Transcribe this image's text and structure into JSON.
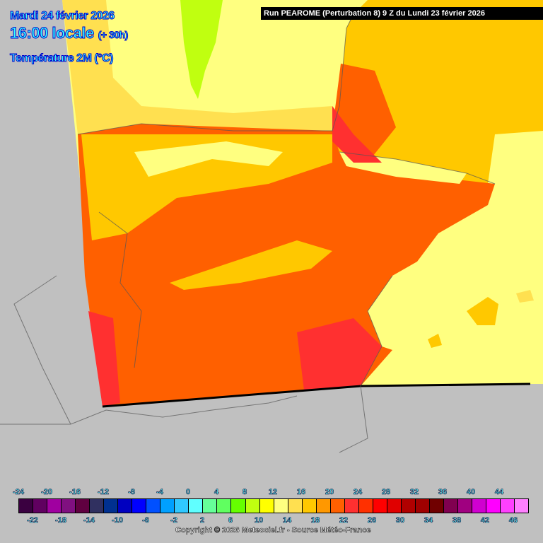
{
  "header": {
    "date": "Mardi 24 février 2026",
    "time": "16:00 locale",
    "lead": "(+ 30h)",
    "parameter": "Température 2M (°C)",
    "run": "Run PEAROME (Perturbation 8) 9 Z du Lundi 23 février 2026"
  },
  "legend": {
    "colors": [
      "#3a0040",
      "#600060",
      "#a000a0",
      "#801080",
      "#600040",
      "#303060",
      "#003090",
      "#0000c0",
      "#0000ff",
      "#0050ff",
      "#00a0ff",
      "#30c8ff",
      "#60ffff",
      "#66ff99",
      "#60ff60",
      "#66ff00",
      "#c0ff10",
      "#ffff00",
      "#ffff80",
      "#ffe050",
      "#ffc800",
      "#ff9800",
      "#ff6000",
      "#ff3030",
      "#ff3000",
      "#ff0000",
      "#e00000",
      "#b00000",
      "#a00000",
      "#700000",
      "#800050",
      "#a00080",
      "#d000d0",
      "#ff00ff",
      "#ff40ff",
      "#ff80ff"
    ],
    "top_labels": [
      "-24",
      "-20",
      "-16",
      "-12",
      "-8",
      "-4",
      "0",
      "4",
      "8",
      "12",
      "16",
      "20",
      "24",
      "28",
      "32",
      "36",
      "40",
      "44"
    ],
    "bottom_labels": [
      "-22",
      "-18",
      "-14",
      "-10",
      "-6",
      "-2",
      "2",
      "6",
      "10",
      "14",
      "18",
      "22",
      "26",
      "30",
      "34",
      "38",
      "42",
      "46"
    ]
  },
  "footer": {
    "copyright": "Copyright © 2026 Meteociel.fr - Source Météo-France"
  }
}
